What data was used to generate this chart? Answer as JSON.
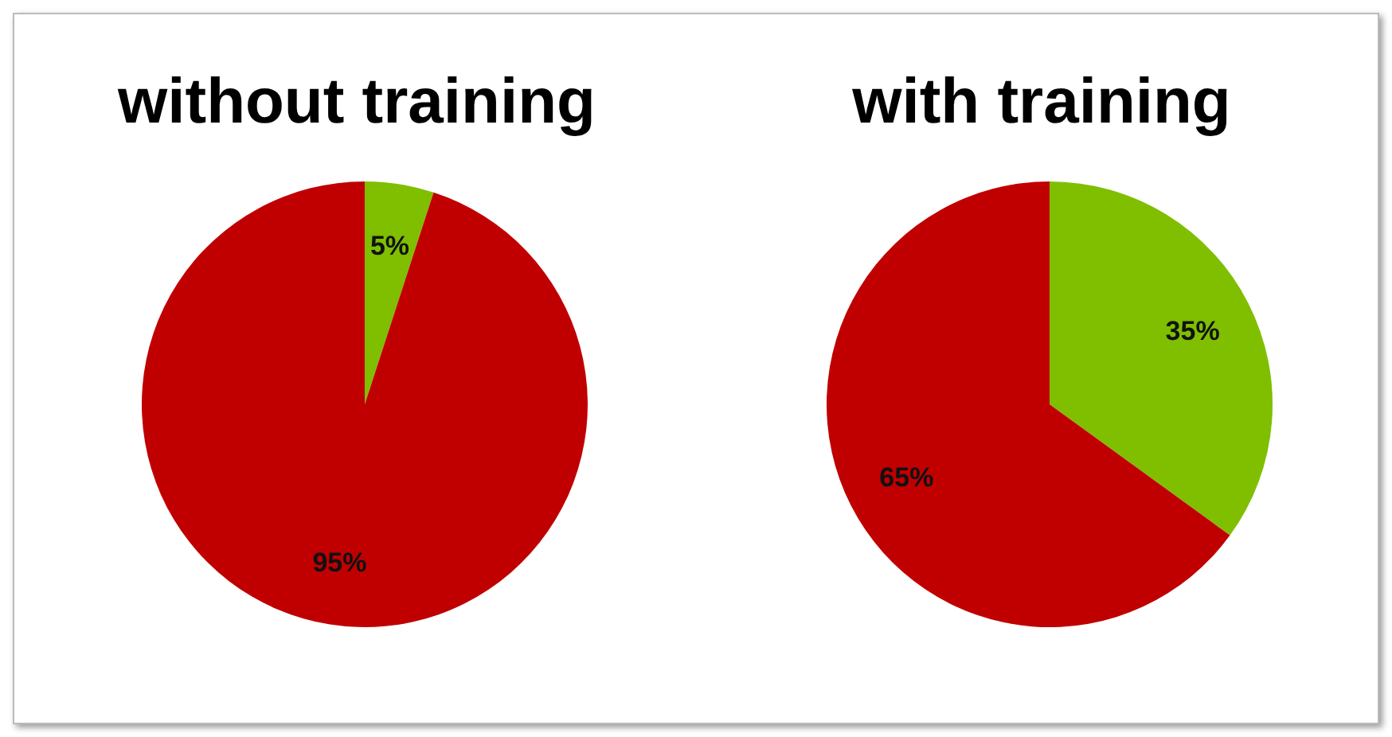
{
  "chart_data": [
    {
      "type": "pie",
      "title": "without training",
      "categories": [
        null,
        null
      ],
      "values": [
        5,
        95
      ],
      "colors": [
        "#7fbf00",
        "#c00000"
      ],
      "value_labels": [
        "5%",
        "95%"
      ]
    },
    {
      "type": "pie",
      "title": "with training",
      "categories": [
        null,
        null
      ],
      "values": [
        35,
        65
      ],
      "colors": [
        "#7fbf00",
        "#c00000"
      ],
      "value_labels": [
        "35%",
        "65%"
      ]
    }
  ]
}
